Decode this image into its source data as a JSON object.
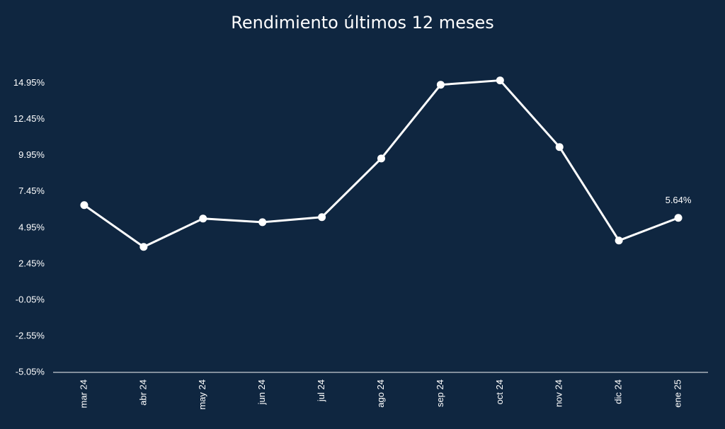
{
  "chart_data": {
    "type": "line",
    "title": "Rendimiento últimos 12 meses",
    "categories": [
      "mar 24",
      "abr 24",
      "may 24",
      "jun 24",
      "jul 24",
      "ago 24",
      "sep 24",
      "oct 24",
      "nov 24",
      "dic 24",
      "ene 25"
    ],
    "values": [
      6.52,
      3.63,
      5.59,
      5.34,
      5.69,
      9.75,
      14.85,
      15.15,
      10.54,
      4.07,
      5.64
    ],
    "value_labels": [
      null,
      null,
      null,
      null,
      null,
      null,
      null,
      null,
      null,
      null,
      "5.64%"
    ],
    "color": "#ffffff",
    "ylim": [
      -5.05,
      16.5
    ],
    "yticks": [
      {
        "value": -5.05,
        "label": "-5.05%"
      },
      {
        "value": -2.55,
        "label": "-2.55%"
      },
      {
        "value": -0.05,
        "label": "-0.05%"
      },
      {
        "value": 2.45,
        "label": "2.45%"
      },
      {
        "value": 4.95,
        "label": "4.95%"
      },
      {
        "value": 7.45,
        "label": "7.45%"
      },
      {
        "value": 9.95,
        "label": "9.95%"
      },
      {
        "value": 12.45,
        "label": "12.45%"
      },
      {
        "value": 14.95,
        "label": "14.95%"
      }
    ],
    "grid": false
  }
}
